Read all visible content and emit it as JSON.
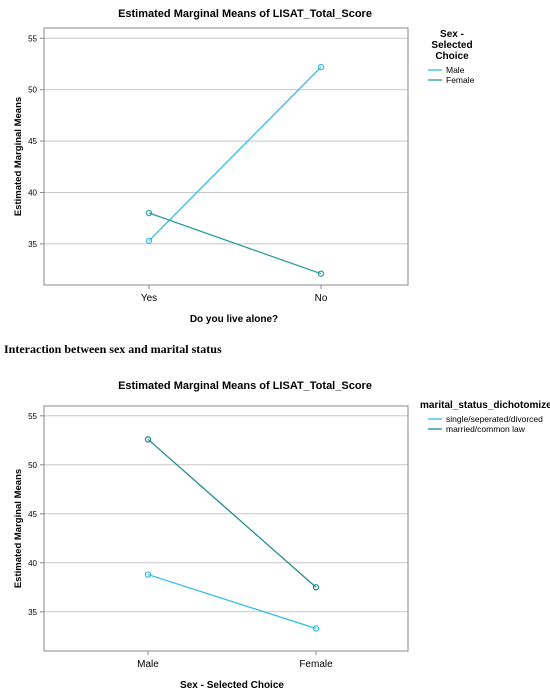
{
  "caption": "Interaction between sex and marital status",
  "chart_data": [
    {
      "type": "line",
      "title": "Estimated Marginal Means of LISAT_Total_Score",
      "xlabel": "Do you live alone?",
      "ylabel": "Estimated Marginal Means",
      "categories": [
        "Yes",
        "No"
      ],
      "ylim": [
        31,
        56
      ],
      "yticks": [
        35,
        40,
        45,
        50,
        55
      ],
      "grid": "horizontal",
      "legend_title": "Sex - Selected Choice",
      "legend_position": "right",
      "series": [
        {
          "name": "Male",
          "values": [
            35.3,
            52.2
          ],
          "color": "#33bde6"
        },
        {
          "name": "Female",
          "values": [
            38.0,
            32.1
          ],
          "color": "#2a9d9f"
        }
      ]
    },
    {
      "type": "line",
      "title": "Estimated Marginal Means of LISAT_Total_Score",
      "xlabel": "Sex - Selected Choice",
      "ylabel": "Estimated Marginal Means",
      "categories": [
        "Male",
        "Female"
      ],
      "ylim": [
        31,
        56
      ],
      "yticks": [
        35,
        40,
        45,
        50,
        55
      ],
      "grid": "horizontal",
      "legend_title": "marital_status_dichotomize",
      "legend_position": "right",
      "series": [
        {
          "name": "single/seperated/divorced",
          "values": [
            38.8,
            33.3
          ],
          "color": "#33bde6"
        },
        {
          "name": "married/common law",
          "values": [
            52.6,
            37.5
          ],
          "color": "#1f8a8c"
        }
      ]
    }
  ]
}
